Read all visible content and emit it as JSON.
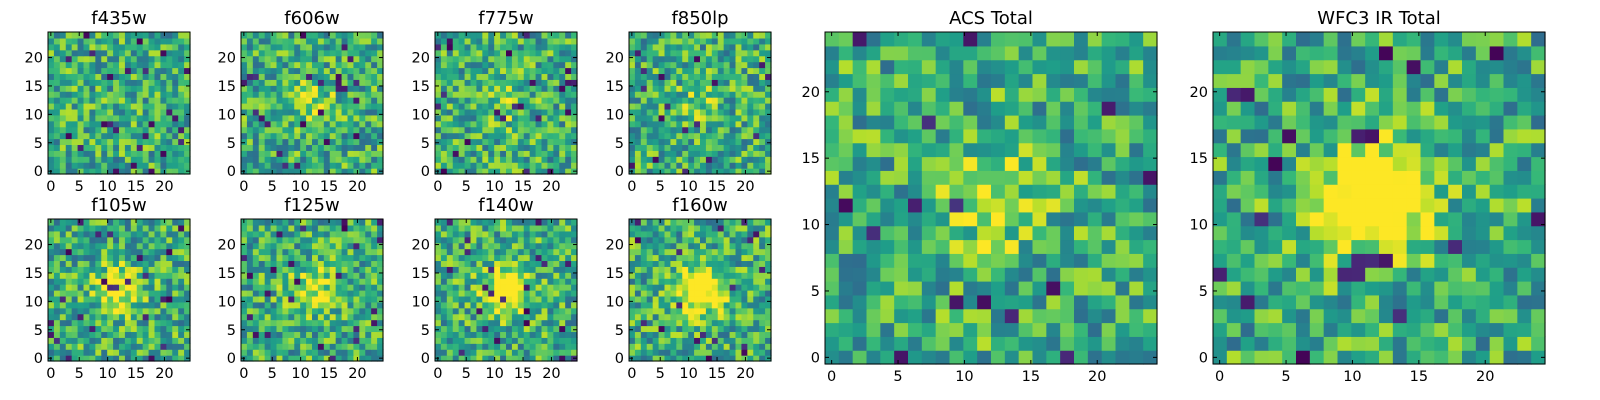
{
  "chart_data": [
    {
      "type": "heatmap",
      "title": "f435w",
      "xticks": [
        "0",
        "5",
        "10",
        "15",
        "20"
      ],
      "yticks": [
        "0",
        "5",
        "10",
        "15",
        "20"
      ],
      "xlim": [
        0,
        24
      ],
      "ylim": [
        0,
        24
      ],
      "grid_size": 24,
      "colormap": "viridis",
      "center_boost": 0.0,
      "seed": 11
    },
    {
      "type": "heatmap",
      "title": "f606w",
      "xticks": [
        "0",
        "5",
        "10",
        "15",
        "20"
      ],
      "yticks": [
        "0",
        "5",
        "10",
        "15",
        "20"
      ],
      "xlim": [
        0,
        24
      ],
      "ylim": [
        0,
        24
      ],
      "grid_size": 24,
      "colormap": "viridis",
      "center_boost": 0.25,
      "seed": 23
    },
    {
      "type": "heatmap",
      "title": "f775w",
      "xticks": [
        "0",
        "5",
        "10",
        "15",
        "20"
      ],
      "yticks": [
        "0",
        "5",
        "10",
        "15",
        "20"
      ],
      "xlim": [
        0,
        24
      ],
      "ylim": [
        0,
        24
      ],
      "grid_size": 24,
      "colormap": "viridis",
      "center_boost": 0.2,
      "seed": 37
    },
    {
      "type": "heatmap",
      "title": "f850lp",
      "xticks": [
        "0",
        "5",
        "10",
        "15",
        "20"
      ],
      "yticks": [
        "0",
        "5",
        "10",
        "15",
        "20"
      ],
      "xlim": [
        0,
        24
      ],
      "ylim": [
        0,
        24
      ],
      "grid_size": 24,
      "colormap": "viridis",
      "center_boost": 0.15,
      "seed": 41
    },
    {
      "type": "heatmap",
      "title": "ACS Total",
      "xticks": [
        "0",
        "5",
        "10",
        "15",
        "20"
      ],
      "yticks": [
        "0",
        "5",
        "10",
        "15",
        "20"
      ],
      "xlim": [
        0,
        24
      ],
      "ylim": [
        0,
        24
      ],
      "grid_size": 24,
      "colormap": "viridis",
      "center_boost": 0.3,
      "seed": 53
    },
    {
      "type": "heatmap",
      "title": "f105w",
      "xticks": [
        "0",
        "5",
        "10",
        "15",
        "20"
      ],
      "yticks": [
        "0",
        "5",
        "10",
        "15",
        "20"
      ],
      "xlim": [
        0,
        24
      ],
      "ylim": [
        0,
        24
      ],
      "grid_size": 24,
      "colormap": "viridis",
      "center_boost": 0.45,
      "seed": 67
    },
    {
      "type": "heatmap",
      "title": "f125w",
      "xticks": [
        "0",
        "5",
        "10",
        "15",
        "20"
      ],
      "yticks": [
        "0",
        "5",
        "10",
        "15",
        "20"
      ],
      "xlim": [
        0,
        24
      ],
      "ylim": [
        0,
        24
      ],
      "grid_size": 24,
      "colormap": "viridis",
      "center_boost": 0.35,
      "seed": 71
    },
    {
      "type": "heatmap",
      "title": "f140w",
      "xticks": [
        "0",
        "5",
        "10",
        "15",
        "20"
      ],
      "yticks": [
        "0",
        "5",
        "10",
        "15",
        "20"
      ],
      "xlim": [
        0,
        24
      ],
      "ylim": [
        0,
        24
      ],
      "grid_size": 24,
      "colormap": "viridis",
      "center_boost": 0.55,
      "seed": 83
    },
    {
      "type": "heatmap",
      "title": "f160w",
      "xticks": [
        "0",
        "5",
        "10",
        "15",
        "20"
      ],
      "yticks": [
        "0",
        "5",
        "10",
        "15",
        "20"
      ],
      "xlim": [
        0,
        24
      ],
      "ylim": [
        0,
        24
      ],
      "grid_size": 24,
      "colormap": "viridis",
      "center_boost": 0.7,
      "seed": 97
    },
    {
      "type": "heatmap",
      "title": "WFC3 IR Total",
      "xticks": [
        "0",
        "5",
        "10",
        "15",
        "20"
      ],
      "yticks": [
        "0",
        "5",
        "10",
        "15",
        "20"
      ],
      "xlim": [
        0,
        24
      ],
      "ylim": [
        0,
        24
      ],
      "grid_size": 24,
      "colormap": "viridis",
      "center_boost": 0.8,
      "seed": 101
    }
  ]
}
